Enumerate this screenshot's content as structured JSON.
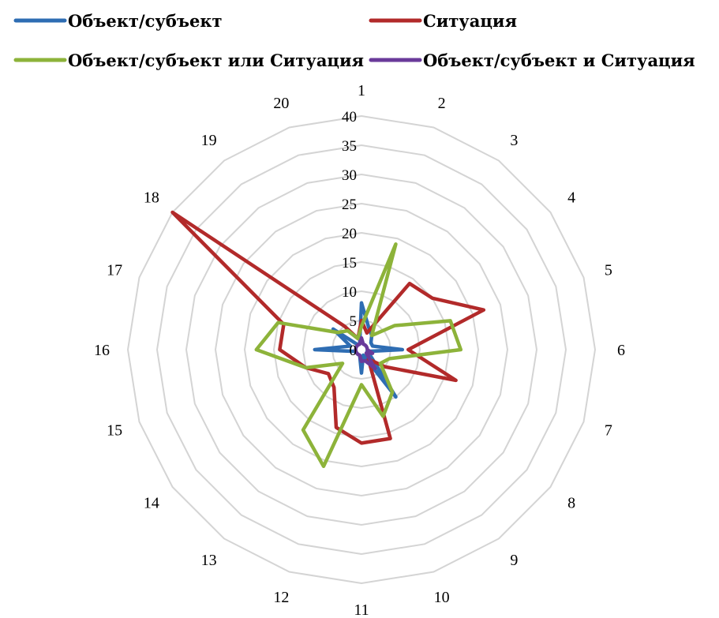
{
  "chart_data": {
    "type": "radar",
    "categories": [
      "1",
      "2",
      "3",
      "4",
      "5",
      "6",
      "7",
      "8",
      "9",
      "10",
      "11",
      "12",
      "13",
      "14",
      "15",
      "16",
      "17",
      "18",
      "19",
      "20"
    ],
    "r_ticks": [
      "0",
      "5",
      "10",
      "15",
      "20",
      "25",
      "30",
      "35",
      "40"
    ],
    "rlim": [
      0,
      40
    ],
    "grid": true,
    "legend_position": "top",
    "series": [
      {
        "name": "Объект/субъект",
        "color": "#2e6db3",
        "values": [
          8,
          4,
          3,
          2,
          2,
          7,
          1,
          2,
          10,
          1,
          4,
          1,
          1,
          1,
          1,
          8,
          2,
          6,
          1,
          1
        ]
      },
      {
        "name": "Ситуация",
        "color": "#b22a2a",
        "values": [
          5,
          3,
          14,
          15,
          22,
          8,
          17,
          5,
          2,
          16,
          16,
          14,
          8,
          7,
          10,
          14,
          14,
          40,
          5,
          2
        ]
      },
      {
        "name": "Объект/субъект или Ситуация",
        "color": "#8db33a",
        "values": [
          4,
          19,
          3,
          7,
          16,
          17,
          5,
          4,
          9,
          12,
          6,
          21,
          17,
          4,
          10,
          18,
          15,
          5,
          4,
          2
        ]
      },
      {
        "name": "Объект/субъект и Ситуация",
        "color": "#6a3a9a",
        "values": [
          2,
          1,
          1,
          1,
          1,
          1,
          2,
          1,
          4,
          2,
          2,
          1,
          1,
          1,
          1,
          1,
          1,
          1,
          1,
          1
        ]
      }
    ]
  }
}
